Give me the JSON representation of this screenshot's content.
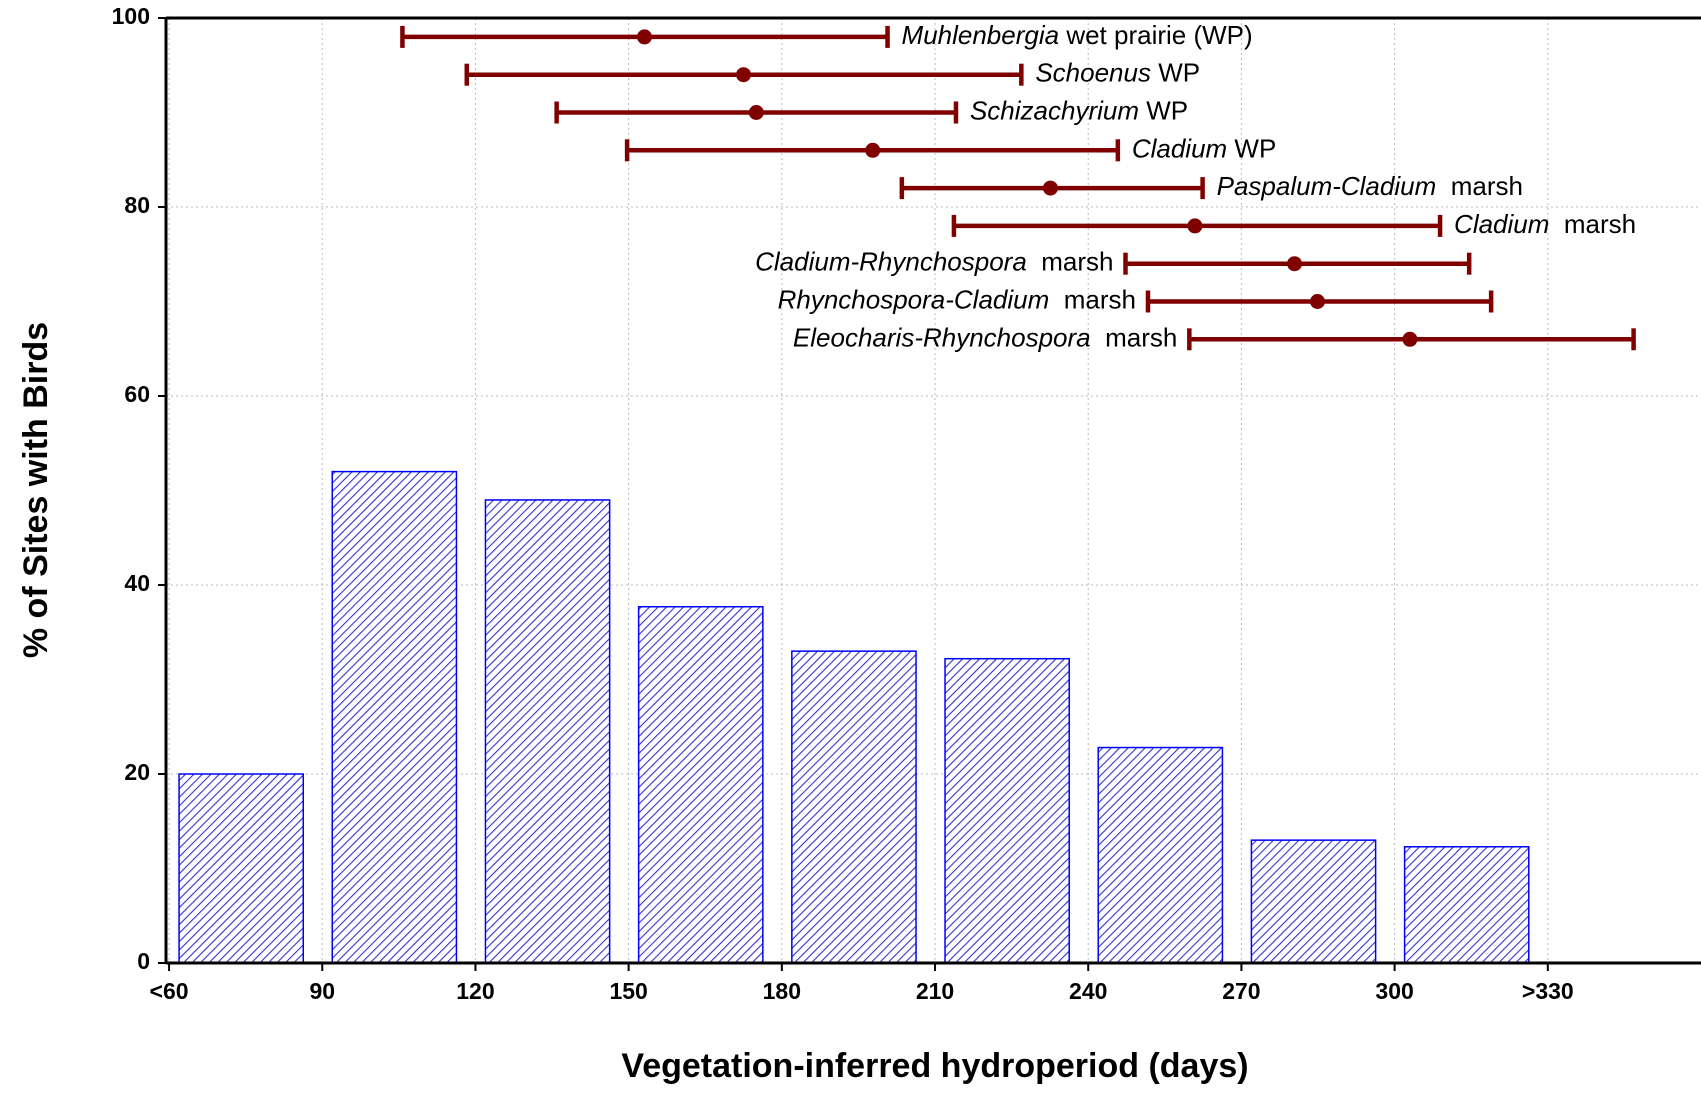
{
  "chart_data": {
    "type": "histogram",
    "xlabel": "Vegetation-inferred hydroperiod (days)",
    "ylabel": "% of Sites with Birds",
    "bins": [
      60,
      90,
      120,
      150,
      180,
      210,
      240,
      270,
      300,
      330
    ],
    "values": [
      20,
      52,
      49,
      37.7,
      33,
      32.2,
      22.8,
      13,
      12.3
    ],
    "color": "#0000ff",
    "xlim": [
      59.4,
      360
    ],
    "ylim": [
      0,
      100
    ],
    "xticks": [
      {
        "value": 60,
        "label": "<60"
      },
      90,
      120,
      150,
      180,
      210,
      240,
      270,
      300,
      {
        "value": 330,
        "label": ">330"
      }
    ],
    "yticks": [
      0,
      20,
      40,
      60,
      80,
      100
    ],
    "grid": true,
    "ranges_color": "#800000",
    "ranges": [
      {
        "name": [
          "Muhlenbergia",
          " wet prairie (WP)"
        ],
        "y": 98,
        "low": 105.7,
        "mid": 153.1,
        "high": 200.7,
        "label_side": "right"
      },
      {
        "name": [
          "Schoenus",
          " WP"
        ],
        "y": 94,
        "low": 118.3,
        "mid": 172.5,
        "high": 226.9,
        "label_side": "right"
      },
      {
        "name": [
          "Schizachyrium",
          " WP"
        ],
        "y": 90,
        "low": 135.9,
        "mid": 175,
        "high": 214.1,
        "label_side": "right"
      },
      {
        "name": [
          "Cladium",
          " WP"
        ],
        "y": 86,
        "low": 149.7,
        "mid": 197.8,
        "high": 245.8,
        "label_side": "right"
      },
      {
        "name": [
          "Paspalum-Cladium",
          "  marsh"
        ],
        "y": 82,
        "low": 203.5,
        "mid": 232.6,
        "high": 262.4,
        "label_side": "right"
      },
      {
        "name": [
          "Cladium",
          "  marsh"
        ],
        "y": 78,
        "low": 213.7,
        "mid": 260.9,
        "high": 308.9,
        "label_side": "right"
      },
      {
        "name": [
          "Cladium-Rhynchospora",
          "  marsh"
        ],
        "y": 74,
        "low": 247.3,
        "mid": 280.4,
        "high": 314.6,
        "label_side": "left"
      },
      {
        "name": [
          "Rhynchospora-Cladium",
          "  marsh"
        ],
        "y": 70,
        "low": 251.7,
        "mid": 284.9,
        "high": 318.9,
        "label_side": "left"
      },
      {
        "name": [
          "Eleocharis-Rhynchospora",
          "  marsh"
        ],
        "y": 66,
        "low": 259.8,
        "mid": 303,
        "high": 346.8,
        "label_side": "left"
      }
    ]
  }
}
